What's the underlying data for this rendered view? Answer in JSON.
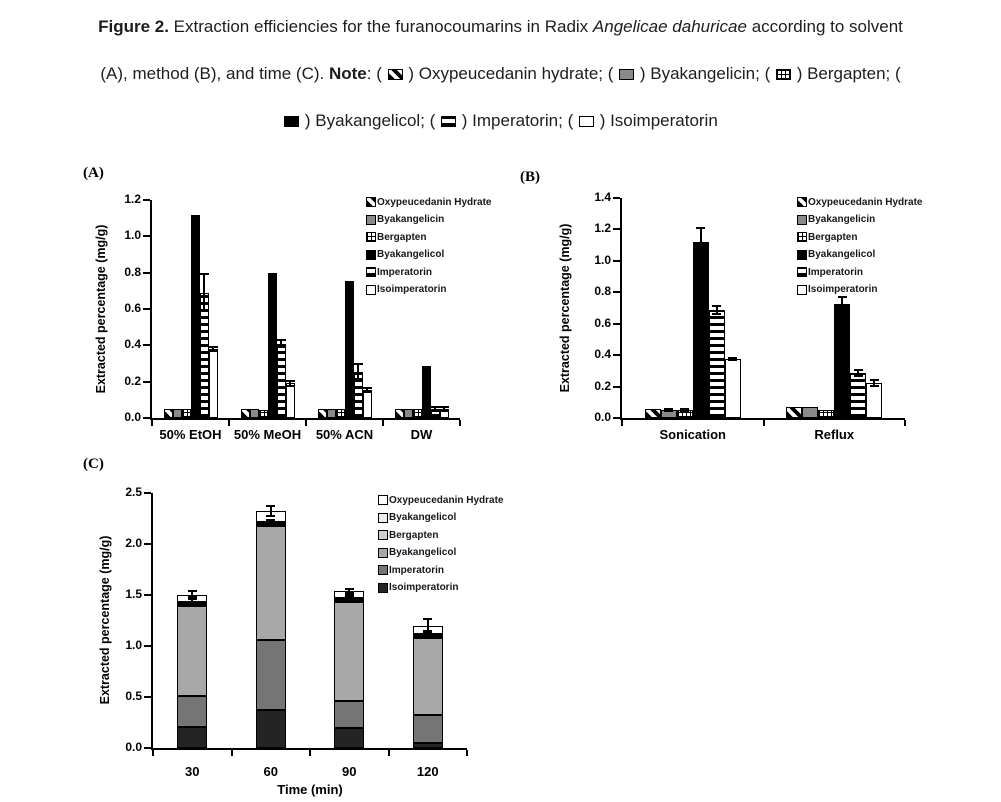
{
  "caption": {
    "lines": [
      [
        {
          "style": "bold",
          "text": "Figure 2."
        },
        {
          "style": "plain",
          "text": " Extraction efficiencies for the furanocoumarins in Radix "
        },
        {
          "style": "italic",
          "text": "Angelicae dahuricae"
        },
        {
          "style": "plain",
          "text": " according to solvent"
        }
      ],
      [
        {
          "style": "plain",
          "text": "(A), method (B), and time (C). "
        },
        {
          "style": "bold",
          "text": "Note"
        },
        {
          "style": "plain",
          "text": ": ( "
        },
        {
          "style": "swatch",
          "key": "oxypeucedanin_hydrate"
        },
        {
          "style": "plain",
          "text": " ) Oxypeucedanin hydrate; ( "
        },
        {
          "style": "swatch",
          "key": "byakangelicin"
        },
        {
          "style": "plain",
          "text": " ) Byakangelicin; ( "
        },
        {
          "style": "swatch",
          "key": "bergapten"
        },
        {
          "style": "plain",
          "text": " )  Bergapten; ("
        }
      ],
      [
        {
          "style": "swatch",
          "key": "byakangelicol"
        },
        {
          "style": "plain",
          "text": " ) Byakangelicol; ( "
        },
        {
          "style": "swatch",
          "key": "imperatorin"
        },
        {
          "style": "plain",
          "text": " ) Imperatorin; ( "
        },
        {
          "style": "swatch",
          "key": "isoimperatorin"
        },
        {
          "style": "plain",
          "text": " ) Isoimperatorin"
        }
      ]
    ],
    "swatch_patterns": {
      "oxypeucedanin_hydrate": "diagonal",
      "byakangelicin": "gray",
      "bergapten": "grid",
      "byakangelicol": "black",
      "imperatorin": "hstripe",
      "isoimperatorin": "white"
    }
  },
  "chart_data": [
    {
      "panel": "A",
      "panel_label": "(A)",
      "type": "bar",
      "grouping": "grouped",
      "ylabel": "Extracted percentage (mg/g)",
      "xlabel": "",
      "ylim": [
        0,
        1.2
      ],
      "yticks": [
        0,
        0.2,
        0.4,
        0.6,
        0.8,
        1.0,
        1.2
      ],
      "categories": [
        "50% EtOH",
        "50% MeOH",
        "50% ACN",
        "DW"
      ],
      "legend_position": "top-right",
      "grid": false,
      "series": [
        {
          "name": "Oxypeucedanin Hydrate",
          "pattern": "diagonal",
          "values": [
            0.05,
            0.05,
            0.05,
            0.05
          ],
          "errors": [
            0,
            0,
            0,
            0
          ]
        },
        {
          "name": "Byakangelicin",
          "pattern": "gray",
          "values": [
            0.05,
            0.05,
            0.05,
            0.05
          ],
          "errors": [
            0,
            0,
            0,
            0
          ]
        },
        {
          "name": "Bergapten",
          "pattern": "grid",
          "values": [
            0.05,
            0.045,
            0.05,
            0.05
          ],
          "errors": [
            0,
            0,
            0,
            0
          ]
        },
        {
          "name": "Byakangelicol",
          "pattern": "black",
          "values": [
            1.12,
            0.8,
            0.755,
            0.285
          ],
          "errors": [
            0,
            0,
            0,
            0
          ]
        },
        {
          "name": "Imperatorin",
          "pattern": "hstripe",
          "values": [
            0.69,
            0.41,
            0.255,
            0.05
          ],
          "errors": [
            0.1,
            0.02,
            0.04,
            0.01
          ]
        },
        {
          "name": "Isoimperatorin",
          "pattern": "white",
          "values": [
            0.38,
            0.19,
            0.155,
            0.05
          ],
          "errors": [
            0.01,
            0.015,
            0.012,
            0.01
          ]
        }
      ]
    },
    {
      "panel": "B",
      "panel_label": "(B)",
      "type": "bar",
      "grouping": "grouped",
      "ylabel": "Extracted percentage (mg/g)",
      "xlabel": "",
      "ylim": [
        0,
        1.4
      ],
      "yticks": [
        0,
        0.2,
        0.4,
        0.6,
        0.8,
        1.0,
        1.2,
        1.4
      ],
      "categories": [
        "Sonication",
        "Reflux"
      ],
      "legend_position": "top-right",
      "grid": false,
      "series": [
        {
          "name": "Oxypeucedanin Hydrate",
          "pattern": "diagonal",
          "values": [
            0.055,
            0.07
          ],
          "errors": [
            0,
            0
          ]
        },
        {
          "name": "Byakangelicin",
          "pattern": "gray",
          "values": [
            0.05,
            0.07
          ],
          "errors": [
            0.008,
            0
          ]
        },
        {
          "name": "Bergapten",
          "pattern": "grid",
          "values": [
            0.05,
            0.05
          ],
          "errors": [
            0.008,
            0
          ]
        },
        {
          "name": "Byakangelicol",
          "pattern": "black",
          "values": [
            1.12,
            0.725
          ],
          "errors": [
            0.09,
            0.045
          ]
        },
        {
          "name": "Imperatorin",
          "pattern": "hstripe",
          "values": [
            0.685,
            0.285
          ],
          "errors": [
            0.025,
            0.02
          ]
        },
        {
          "name": "Isoimperatorin",
          "pattern": "white",
          "values": [
            0.375,
            0.225
          ],
          "errors": [
            0.008,
            0.02
          ]
        }
      ]
    },
    {
      "panel": "C",
      "panel_label": "(C)",
      "type": "bar",
      "grouping": "stacked",
      "ylabel": "Extracted percentage (mg/g)",
      "xlabel": "Time (min)",
      "ylim": [
        0,
        2.5
      ],
      "yticks": [
        0,
        0.5,
        1.0,
        1.5,
        2.0,
        2.5
      ],
      "categories": [
        "30",
        "60",
        "90",
        "120"
      ],
      "legend_position": "top-right",
      "grid": false,
      "series": [
        {
          "name": "Isoimperatorin",
          "pattern": "c-darkest",
          "values": [
            0.21,
            0.37,
            0.2,
            0.05
          ]
        },
        {
          "name": "Imperatorin",
          "pattern": "c-dark",
          "values": [
            0.3,
            0.69,
            0.26,
            0.27
          ]
        },
        {
          "name": "Byakangelicol",
          "pattern": "c-medium",
          "values": [
            0.88,
            1.12,
            0.97,
            0.76
          ]
        },
        {
          "name": "Bergapten",
          "pattern": "c-light",
          "values": [
            0.02,
            0.02,
            0.02,
            0.02
          ]
        },
        {
          "name": "Byakangelicol",
          "pattern": "c-lighter",
          "values": [
            0.02,
            0.02,
            0.02,
            0.02
          ]
        },
        {
          "name": "Oxypeucedanin Hydrate",
          "pattern": "c-white",
          "values": [
            0.07,
            0.1,
            0.07,
            0.08
          ]
        }
      ],
      "totals": [
        1.5,
        2.32,
        1.54,
        1.2
      ],
      "total_errors": [
        0.04,
        0.05,
        0.02,
        0.06
      ],
      "inner_markers": [
        {
          "category": "30",
          "value": 1.46,
          "err": 0.025
        },
        {
          "category": "60",
          "value": 2.22,
          "err": 0.02
        },
        {
          "category": "90",
          "value": 1.49,
          "err": 0.01
        },
        {
          "category": "120",
          "value": 1.12,
          "err": 0.03
        }
      ],
      "legend": [
        {
          "label": "Oxypeucedanin Hydrate",
          "pattern": "c-white"
        },
        {
          "label": "Byakangelicol",
          "pattern": "c-lighter"
        },
        {
          "label": "Bergapten",
          "pattern": "c-light"
        },
        {
          "label": "Byakangelicol",
          "pattern": "c-medium"
        },
        {
          "label": "Imperatorin",
          "pattern": "c-dark"
        },
        {
          "label": "Isoimperatorin",
          "pattern": "c-darkest"
        }
      ]
    }
  ]
}
